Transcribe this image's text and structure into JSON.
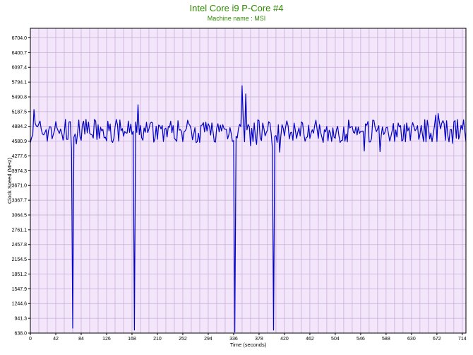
{
  "chart_data": {
    "type": "line",
    "title": "Intel Core i9 P-Core #4",
    "subtitle": "Machine name : MSI",
    "xlabel": "Time (seconds)",
    "ylabel": "Clock Speed (MHz)",
    "xlim": [
      0,
      720
    ],
    "ylim": [
      638.0,
      6900
    ],
    "x_ticks": [
      "0",
      "42",
      "84",
      "126",
      "168",
      "210",
      "252",
      "294",
      "336",
      "378",
      "420",
      "462",
      "504",
      "546",
      "588",
      "630",
      "672",
      "714"
    ],
    "y_ticks": [
      "638.0",
      "941.3",
      "1244.6",
      "1547.9",
      "1851.2",
      "2154.5",
      "2457.8",
      "2761.1",
      "3064.5",
      "3367.7",
      "3671.0",
      "3974.3",
      "4277.6",
      "4580.9",
      "4884.2",
      "5187.5",
      "5490.8",
      "5794.1",
      "6097.4",
      "6400.7",
      "6704.0"
    ],
    "grid": true,
    "colors": {
      "title": "#2e8b00",
      "subtitle": "#2e8b00",
      "line": "#0000c8",
      "plot_background": "#f3e6fb",
      "grid": "#c7aed6",
      "axes": "#000000"
    },
    "series": [
      {
        "baseline_mhz": 4790,
        "variation_mhz": 240,
        "sample_interval_s": 2,
        "spikes": [
          {
            "time_s": 350,
            "value_mhz": 5720
          },
          {
            "time_s": 355,
            "value_mhz": 5550
          },
          {
            "time_s": 5,
            "value_mhz": 5230
          },
          {
            "time_s": 178,
            "value_mhz": 5330
          }
        ],
        "drops": [
          {
            "time_s": 70,
            "value_mhz": 740
          },
          {
            "time_s": 172,
            "value_mhz": 700
          },
          {
            "time_s": 338,
            "value_mhz": 660
          },
          {
            "time_s": 402,
            "value_mhz": 700
          }
        ]
      }
    ]
  }
}
